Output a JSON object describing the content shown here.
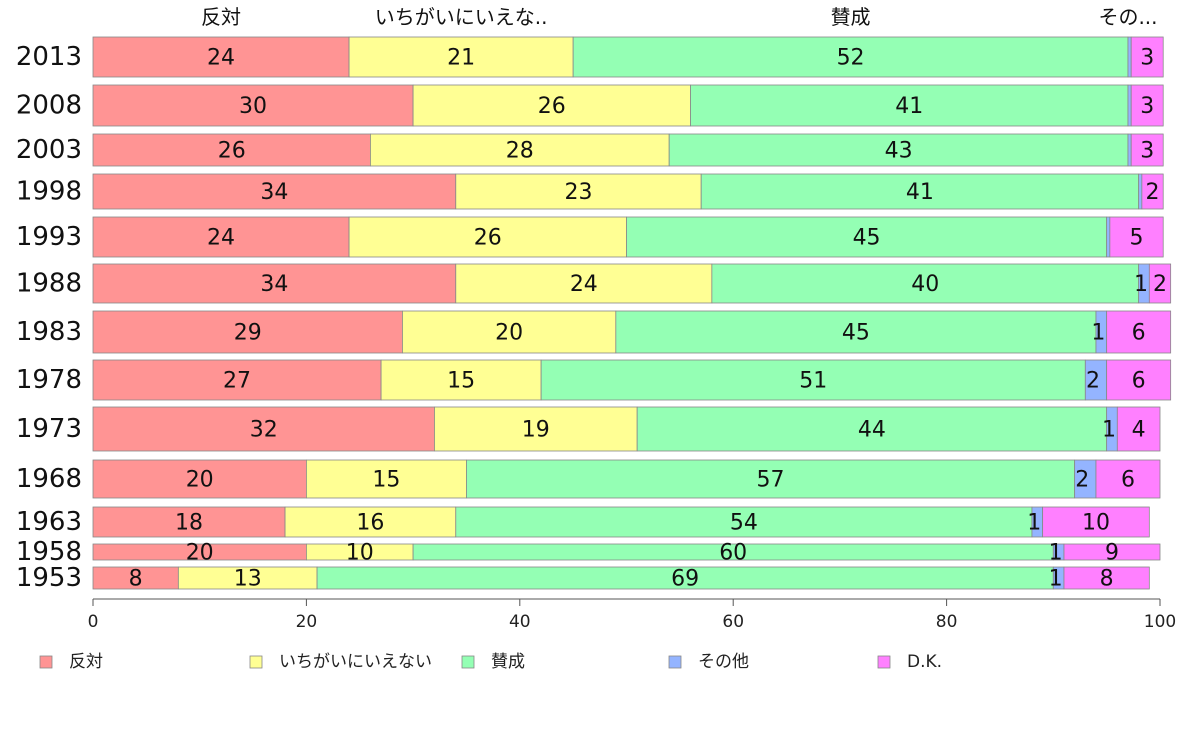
{
  "chart_data": {
    "type": "bar",
    "orientation": "horizontal",
    "stacked": true,
    "categories": [
      "2013",
      "2008",
      "2003",
      "1998",
      "1993",
      "1988",
      "1983",
      "1978",
      "1973",
      "1968",
      "1963",
      "1958",
      "1953"
    ],
    "top_labels": [
      "反対",
      "いちがいにいえな..",
      "賛成",
      "その..."
    ],
    "series": [
      {
        "name": "反対",
        "color": "#ff9494",
        "values": [
          24,
          30,
          26,
          34,
          24,
          34,
          29,
          27,
          32,
          20,
          18,
          20,
          8
        ]
      },
      {
        "name": "いちがいにいえない",
        "color": "#ffff94",
        "values": [
          21,
          26,
          28,
          23,
          26,
          24,
          20,
          15,
          19,
          15,
          16,
          10,
          13
        ]
      },
      {
        "name": "賛成",
        "color": "#94ffb4",
        "values": [
          52,
          41,
          43,
          41,
          45,
          40,
          45,
          51,
          44,
          57,
          54,
          60,
          69
        ]
      },
      {
        "name": "その他",
        "color": "#94b4ff",
        "values": [
          0.3,
          0.3,
          0.3,
          0.3,
          0.3,
          1,
          1,
          2,
          1,
          2,
          1,
          1,
          1
        ]
      },
      {
        "name": "D.K.",
        "color": "#ff80ff",
        "values": [
          3,
          3,
          3,
          2,
          5,
          2,
          6,
          6,
          4,
          6,
          10,
          9,
          8
        ]
      }
    ],
    "value_labels": [
      [
        "24",
        "21",
        "52",
        "",
        "3"
      ],
      [
        "30",
        "26",
        "41",
        "",
        "3"
      ],
      [
        "26",
        "28",
        "43",
        "",
        "3"
      ],
      [
        "34",
        "23",
        "41",
        "",
        "2"
      ],
      [
        "24",
        "26",
        "45",
        "",
        "5"
      ],
      [
        "34",
        "24",
        "40",
        "1",
        "2"
      ],
      [
        "29",
        "20",
        "45",
        "1",
        "6"
      ],
      [
        "27",
        "15",
        "51",
        "2",
        "6"
      ],
      [
        "32",
        "19",
        "44",
        "1",
        "4"
      ],
      [
        "20",
        "15",
        "57",
        "2",
        "6"
      ],
      [
        "18",
        "16",
        "54",
        "1",
        "10"
      ],
      [
        "20",
        "10",
        "60",
        "1",
        "9"
      ],
      [
        "8",
        "13",
        "69",
        "1",
        "8"
      ]
    ],
    "xlim": [
      0,
      100
    ],
    "xticks": [
      "0",
      "20",
      "40",
      "60",
      "80",
      "100"
    ],
    "grid": false,
    "legend": "bottom"
  }
}
